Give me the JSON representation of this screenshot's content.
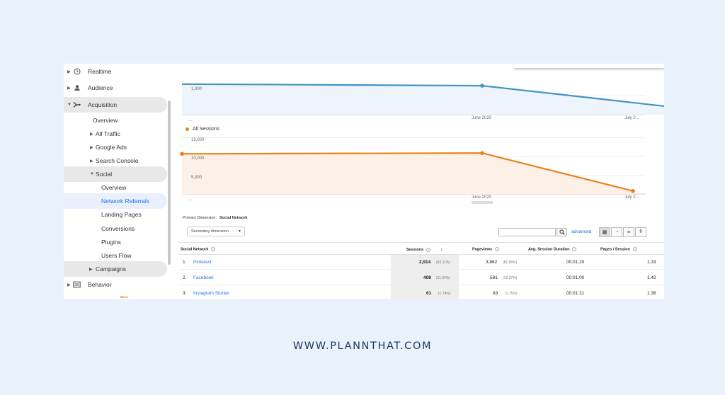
{
  "sidebar": {
    "items": [
      {
        "label": "Realtime",
        "icon": "clock-icon"
      },
      {
        "label": "Audience",
        "icon": "person-icon"
      },
      {
        "label": "Acquisition",
        "icon": "acquisition-icon"
      },
      {
        "label": "Overview"
      },
      {
        "label": "All Traffic"
      },
      {
        "label": "Google Ads"
      },
      {
        "label": "Search Console"
      },
      {
        "label": "Social"
      },
      {
        "label": "Overview"
      },
      {
        "label": "Network Referrals"
      },
      {
        "label": "Landing Pages"
      },
      {
        "label": "Conversions"
      },
      {
        "label": "Plugins"
      },
      {
        "label": "Users Flow"
      },
      {
        "label": "Campaigns"
      },
      {
        "label": "Behavior",
        "icon": "behavior-icon"
      }
    ],
    "beta": "BETA"
  },
  "chart_data": [
    {
      "type": "line",
      "title": "",
      "x": [
        "",
        "June 2020",
        "July 2..."
      ],
      "y_ticks": [
        "1,000"
      ],
      "x_ticks": [
        "...",
        "June 2020",
        "July 2..."
      ],
      "series": [
        {
          "values": [
            1350,
            1280,
            180
          ]
        }
      ],
      "color": "#4292c6"
    },
    {
      "type": "area",
      "title": "",
      "x": [
        "",
        "June 2020",
        "July 2..."
      ],
      "y_ticks": [
        "15,000",
        "10,000",
        "5,000"
      ],
      "x_ticks": [
        "...",
        "June 2020",
        "July 2..."
      ],
      "ylim": [
        0,
        16000
      ],
      "series": [
        {
          "name": "All Sessions",
          "values": [
            10700,
            10900,
            800
          ]
        }
      ],
      "color": "#e8821e"
    }
  ],
  "table": {
    "primary_dimension_label": "Primary Dimension:",
    "primary_dimension_value": "Social Network",
    "secondary_dimension": "Secondary dimension",
    "advanced": "advanced",
    "headers": {
      "network": "Social Network",
      "sessions": "Sessions",
      "pageviews": "Pageviews",
      "avg_duration": "Avg. Session Duration",
      "pages_session": "Pages / Session"
    },
    "rows": [
      {
        "idx": "1.",
        "name": "Pinterest",
        "sessions": "2,914",
        "sessions_pct": "(83.11%)",
        "pageviews": "3,862",
        "pageviews_pct": "(81.56%)",
        "duration": "00:01:20",
        "pps": "1.33"
      },
      {
        "idx": "2.",
        "name": "Facebook",
        "sessions": "408",
        "sessions_pct": "(11.64%)",
        "pageviews": "581",
        "pageviews_pct": "(12.27%)",
        "duration": "00:01:00",
        "pps": "1.42"
      },
      {
        "idx": "3.",
        "name": "Instagram Stories",
        "sessions": "61",
        "sessions_pct": "(1.74%)",
        "pageviews": "83",
        "pageviews_pct": "(1.75%)",
        "duration": "00:01:21",
        "pps": "1.36"
      }
    ]
  },
  "footer": "WWW.PLANNTHAT.COM"
}
